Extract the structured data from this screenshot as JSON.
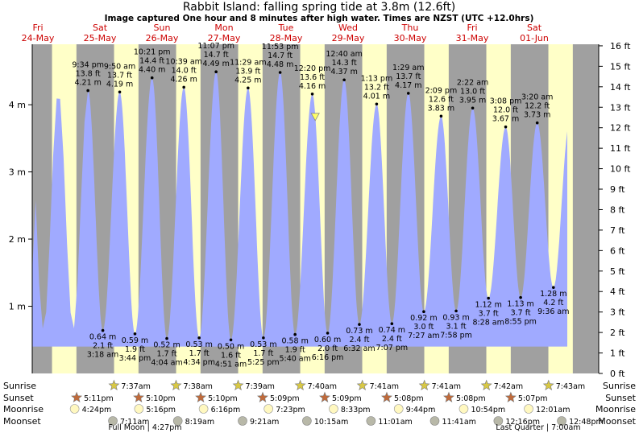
{
  "chart_data": {
    "type": "area",
    "title": "Rabbit Island: falling  spring tide at 3.8m (12.6ft)",
    "subtitle": "Image captured One hour and 8 minutes after high water. Times are NZST (UTC +12.0hrs)",
    "ylim_m": [
      0,
      4.9
    ],
    "ylim_ft": [
      0,
      16
    ],
    "y_ticks_m": [
      {
        "v": 1,
        "label": "1 m"
      },
      {
        "v": 2,
        "label": "2 m"
      },
      {
        "v": 3,
        "label": "3 m"
      },
      {
        "v": 4,
        "label": "4 m"
      }
    ],
    "y_ticks_ft": [
      "0 ft",
      "1 ft",
      "2 ft",
      "3 ft",
      "4 ft",
      "5 ft",
      "6 ft",
      "7 ft",
      "8 ft",
      "9 ft",
      "10 ft",
      "11 ft",
      "12 ft",
      "13 ft",
      "14 ft",
      "15 ft",
      "16 ft"
    ],
    "days": [
      {
        "dow": "Fri",
        "date": "24-May"
      },
      {
        "dow": "Sat",
        "date": "25-May"
      },
      {
        "dow": "Sun",
        "date": "26-May"
      },
      {
        "dow": "Mon",
        "date": "27-May"
      },
      {
        "dow": "Tue",
        "date": "28-May"
      },
      {
        "dow": "Wed",
        "date": "29-May"
      },
      {
        "dow": "Thu",
        "date": "30-May"
      },
      {
        "dow": "Fri",
        "date": "31-May"
      },
      {
        "dow": "Sat",
        "date": "01-Jun"
      }
    ],
    "tides": [
      {
        "type": "high",
        "day": 0,
        "time": "9:34 pm",
        "ft": "13.8 ft",
        "m": "4.21 m",
        "value": 4.21
      },
      {
        "type": "low",
        "day": 1,
        "time": "3:18 am",
        "ft": "2.1 ft",
        "m": "0.64 m",
        "value": 0.64
      },
      {
        "type": "high",
        "day": 1,
        "time": "9:50 am",
        "ft": "13.7 ft",
        "m": "4.19 m",
        "value": 4.19
      },
      {
        "type": "low",
        "day": 1,
        "time": "3:44 pm",
        "ft": "1.9 ft",
        "m": "0.59 m",
        "value": 0.59
      },
      {
        "type": "high",
        "day": 1,
        "time": "10:21 pm",
        "ft": "14.4 ft",
        "m": "4.40 m",
        "value": 4.4
      },
      {
        "type": "low",
        "day": 2,
        "time": "4:04 am",
        "ft": "1.7 ft",
        "m": "0.52 m",
        "value": 0.52
      },
      {
        "type": "high",
        "day": 2,
        "time": "10:39 am",
        "ft": "14.0 ft",
        "m": "4.26 m",
        "value": 4.26
      },
      {
        "type": "low",
        "day": 2,
        "time": "4:34 pm",
        "ft": "1.7 ft",
        "m": "0.53 m",
        "value": 0.53
      },
      {
        "type": "high",
        "day": 2,
        "time": "11:07 pm",
        "ft": "14.7 ft",
        "m": "4.49 m",
        "value": 4.49
      },
      {
        "type": "low",
        "day": 3,
        "time": "4:51 am",
        "ft": "1.6 ft",
        "m": "0.50 m",
        "value": 0.5
      },
      {
        "type": "high",
        "day": 3,
        "time": "11:29 am",
        "ft": "13.9 ft",
        "m": "4.25 m",
        "value": 4.25
      },
      {
        "type": "low",
        "day": 3,
        "time": "5:25 pm",
        "ft": "1.7 ft",
        "m": "0.53 m",
        "value": 0.53
      },
      {
        "type": "high",
        "day": 3,
        "time": "11:53 pm",
        "ft": "14.7 ft",
        "m": "4.48 m",
        "value": 4.48
      },
      {
        "type": "low",
        "day": 4,
        "time": "5:40 am",
        "ft": "1.9 ft",
        "m": "0.58 m",
        "value": 0.58
      },
      {
        "type": "high",
        "day": 4,
        "time": "12:20 pm",
        "ft": "13.6 ft",
        "m": "4.16 m",
        "value": 4.16
      },
      {
        "type": "low",
        "day": 4,
        "time": "6:16 pm",
        "ft": "2.0 ft",
        "m": "0.60 m",
        "value": 0.6
      },
      {
        "type": "high",
        "day": 5,
        "time": "12:40 am",
        "ft": "14.3 ft",
        "m": "4.37 m",
        "value": 4.37
      },
      {
        "type": "low",
        "day": 5,
        "time": "6:32 am",
        "ft": "2.4 ft",
        "m": "0.73 m",
        "value": 0.73
      },
      {
        "type": "high",
        "day": 5,
        "time": "1:13 pm",
        "ft": "13.2 ft",
        "m": "4.01 m",
        "value": 4.01
      },
      {
        "type": "low",
        "day": 5,
        "time": "7:07 pm",
        "ft": "2.4 ft",
        "m": "0.74 m",
        "value": 0.74
      },
      {
        "type": "high",
        "day": 6,
        "time": "1:29 am",
        "ft": "13.7 ft",
        "m": "4.17 m",
        "value": 4.17
      },
      {
        "type": "low",
        "day": 6,
        "time": "7:27 am",
        "ft": "3.0 ft",
        "m": "0.92 m",
        "value": 0.92
      },
      {
        "type": "high",
        "day": 6,
        "time": "2:09 pm",
        "ft": "12.6 ft",
        "m": "3.83 m",
        "value": 3.83
      },
      {
        "type": "low",
        "day": 6,
        "time": "7:58 pm",
        "ft": "3.1 ft",
        "m": "0.93 m",
        "value": 0.93
      },
      {
        "type": "high",
        "day": 7,
        "time": "2:22 am",
        "ft": "13.0 ft",
        "m": "3.95 m",
        "value": 3.95
      },
      {
        "type": "low",
        "day": 7,
        "time": "8:28 am",
        "ft": "3.7 ft",
        "m": "1.12 m",
        "value": 1.12
      },
      {
        "type": "high",
        "day": 7,
        "time": "3:08 pm",
        "ft": "12.0 ft",
        "m": "3.67 m",
        "value": 3.67
      },
      {
        "type": "low",
        "day": 7,
        "time": "8:55 pm",
        "ft": "3.7 ft",
        "m": "1.13 m",
        "value": 1.13
      },
      {
        "type": "high",
        "day": 8,
        "time": "3:20 am",
        "ft": "12.2 ft",
        "m": "3.73 m",
        "value": 3.73
      },
      {
        "type": "low",
        "day": 8,
        "time": "9:36 am",
        "ft": "4.2 ft",
        "m": "1.28 m",
        "value": 1.28
      }
    ],
    "current": {
      "day": 4,
      "time": "1:28 pm",
      "value": 3.8
    },
    "rows": {
      "sunrise_label": "Sunrise",
      "sunset_label": "Sunset",
      "moonrise_label": "Moonrise",
      "moonset_label": "Moonset",
      "sunrise": [
        "7:37am",
        "7:38am",
        "7:39am",
        "7:40am",
        "7:41am",
        "7:41am",
        "7:42am",
        "7:43am"
      ],
      "sunset": [
        "5:11pm",
        "5:10pm",
        "5:10pm",
        "5:09pm",
        "5:09pm",
        "5:08pm",
        "5:08pm",
        "5:07pm"
      ],
      "moonrise": [
        "4:24pm",
        "5:16pm",
        "6:16pm",
        "7:23pm",
        "8:33pm",
        "9:44pm",
        "10:54pm",
        "12:01am"
      ],
      "moonset": [
        "7:11am",
        "8:19am",
        "9:21am",
        "10:15am",
        "11:01am",
        "11:41am",
        "12:16pm",
        "12:48pm"
      ]
    },
    "moon_phases": [
      {
        "label": "Full Moon | 4:27pm"
      },
      {
        "label": "Last Quarter | 7:00am"
      }
    ],
    "colors": {
      "day": "#ffffc8",
      "night": "#a0a0a0",
      "water": "#a0aaff",
      "date_text": "#cc0000",
      "marker": "#ffff66"
    },
    "grid": false
  }
}
